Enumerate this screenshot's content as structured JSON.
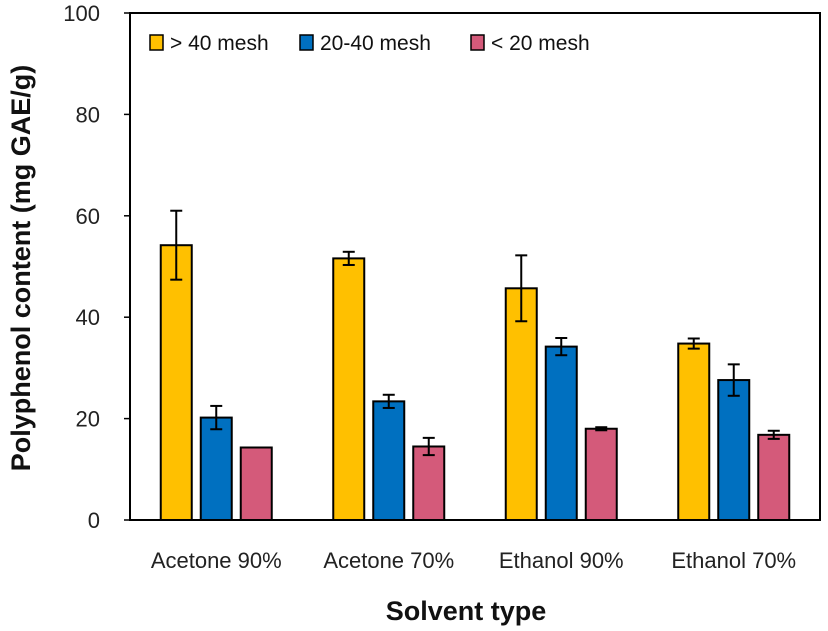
{
  "chart_data": {
    "type": "bar",
    "title": "",
    "xlabel": "Solvent type",
    "ylabel": "Polyphenol content (mg GAE/g)",
    "ylim": [
      0,
      100
    ],
    "yticks": [
      0,
      20,
      40,
      60,
      80,
      100
    ],
    "categories": [
      "Acetone 90%",
      "Acetone 70%",
      "Ethanol 90%",
      "Ethanol 70%"
    ],
    "series": [
      {
        "name": "> 40 mesh",
        "color": "#FFC000",
        "values": [
          54.2,
          51.6,
          45.7,
          34.8
        ],
        "errors": [
          6.8,
          1.3,
          6.5,
          1.0
        ]
      },
      {
        "name": "20-40 mesh",
        "color": "#0070C0",
        "values": [
          20.2,
          23.4,
          34.2,
          27.6
        ],
        "errors": [
          2.3,
          1.3,
          1.7,
          3.1
        ]
      },
      {
        "name": "< 20 mesh",
        "color": "#D45A7A",
        "values": [
          14.3,
          14.5,
          18.0,
          16.8
        ],
        "errors": [
          0.0,
          1.7,
          0.3,
          0.8
        ]
      }
    ],
    "legend_position": "top-left",
    "grid": false
  }
}
